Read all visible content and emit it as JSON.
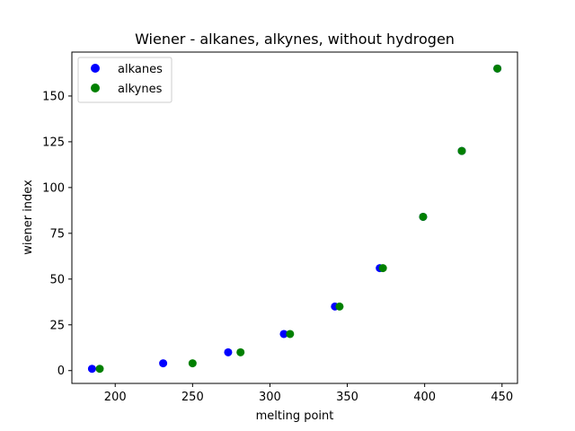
{
  "chart_data": {
    "type": "scatter",
    "title": "Wiener - alkanes, alkynes, without hydrogen",
    "xlabel": "melting point",
    "ylabel": "wiener index",
    "xlim": [
      172,
      460
    ],
    "ylim": [
      -7,
      174
    ],
    "xticks": [
      200,
      250,
      300,
      350,
      400,
      450
    ],
    "yticks": [
      0,
      25,
      50,
      75,
      100,
      125,
      150
    ],
    "grid": false,
    "legend_position": "upper-left",
    "series": [
      {
        "name": "alkanes",
        "color": "#0000ff",
        "x": [
          185,
          231,
          273,
          309,
          342,
          371,
          399,
          424,
          447
        ],
        "y": [
          1,
          4,
          10,
          20,
          35,
          56,
          84,
          120,
          165
        ]
      },
      {
        "name": "alkynes",
        "color": "#008000",
        "x": [
          190,
          250,
          281,
          313,
          345,
          373,
          399,
          424,
          447
        ],
        "y": [
          1,
          4,
          10,
          20,
          35,
          56,
          84,
          120,
          165
        ]
      }
    ]
  }
}
